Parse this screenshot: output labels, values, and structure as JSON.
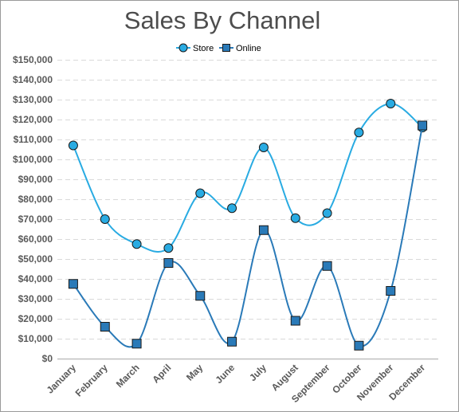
{
  "chart_data": {
    "type": "line",
    "title": "Sales By Channel",
    "categories": [
      "January",
      "February",
      "March",
      "April",
      "May",
      "June",
      "July",
      "August",
      "September",
      "October",
      "November",
      "December"
    ],
    "series": [
      {
        "name": "Store",
        "marker": "circle",
        "color": "#29abe2",
        "values": [
          107000,
          70000,
          57500,
          55500,
          83000,
          75500,
          106000,
          70500,
          73000,
          113500,
          128000,
          116000
        ]
      },
      {
        "name": "Online",
        "marker": "square",
        "color": "#2a7ab8",
        "values": [
          37500,
          16000,
          7500,
          48000,
          31500,
          8500,
          64500,
          19000,
          46500,
          6500,
          34000,
          117000
        ]
      }
    ],
    "ylim": [
      0,
      150000
    ],
    "yticks": [
      0,
      10000,
      20000,
      30000,
      40000,
      50000,
      60000,
      70000,
      80000,
      90000,
      100000,
      110000,
      120000,
      130000,
      140000,
      150000
    ],
    "ytick_labels": [
      "$0",
      "$10,000",
      "$20,000",
      "$30,000",
      "$40,000",
      "$50,000",
      "$60,000",
      "$70,000",
      "$80,000",
      "$90,000",
      "$100,000",
      "$110,000",
      "$120,000",
      "$130,000",
      "$140,000",
      "$150,000"
    ],
    "grid": true,
    "legend_position": "top-center",
    "curve": "smooth"
  }
}
